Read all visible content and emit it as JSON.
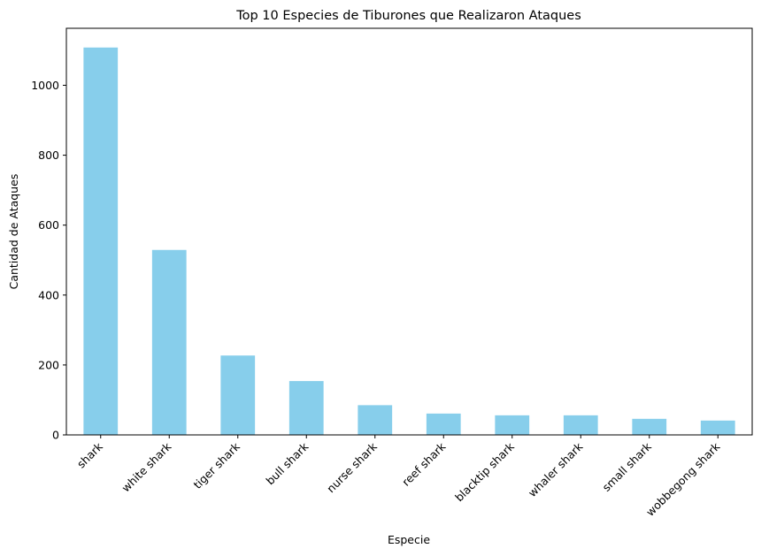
{
  "chart_data": {
    "type": "bar",
    "title": "Top 10 Especies de Tiburones que Realizaron Ataques",
    "xlabel": "Especie",
    "ylabel": "Cantidad de Ataques",
    "categories": [
      "shark",
      "white shark",
      "tiger shark",
      "bull shark",
      "nurse shark",
      "reef shark",
      "blacktip shark",
      "whaler shark",
      "small shark",
      "wobbegong shark"
    ],
    "values": [
      1108,
      529,
      227,
      154,
      85,
      61,
      56,
      56,
      46,
      41
    ],
    "ylim": [
      0,
      1163
    ],
    "yticks": [
      0,
      200,
      400,
      600,
      800,
      1000
    ],
    "bar_color": "#87ceeb",
    "grid": false,
    "legend": "none"
  }
}
